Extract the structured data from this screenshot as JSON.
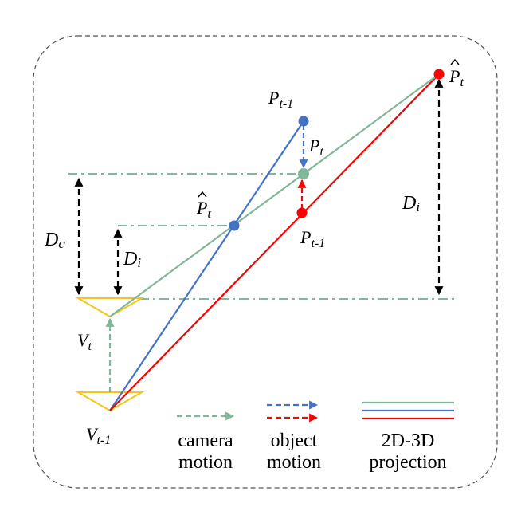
{
  "labels": {
    "pt_minus_1_blue": "P",
    "pt_minus_1_blue_sub": "t-1",
    "pt_blue": "P",
    "pt_blue_sub": "t",
    "pt_hat_red": "P",
    "pt_hat_red_sub": "t",
    "pt_hat_blue": "P",
    "pt_hat_blue_sub": "t",
    "pt_minus_1_red": "P",
    "pt_minus_1_red_sub": "t-1",
    "di_right": "D",
    "di_right_sub": "i",
    "di_left": "D",
    "di_left_sub": "i",
    "dc": "D",
    "dc_sub": "c",
    "vt": "V",
    "vt_sub": "t",
    "vt_minus_1": "V",
    "vt_minus_1_sub": "t-1"
  },
  "legend": {
    "camera_motion": [
      "camera",
      "motion"
    ],
    "object_motion": [
      "object",
      "motion"
    ],
    "projection": [
      "2D-3D",
      "projection"
    ]
  },
  "colors": {
    "green": "#82b89a",
    "blue": "#4472c4",
    "red": "#ff0000",
    "yellow": "#f5c518",
    "black": "#000000",
    "border": "#555555"
  }
}
